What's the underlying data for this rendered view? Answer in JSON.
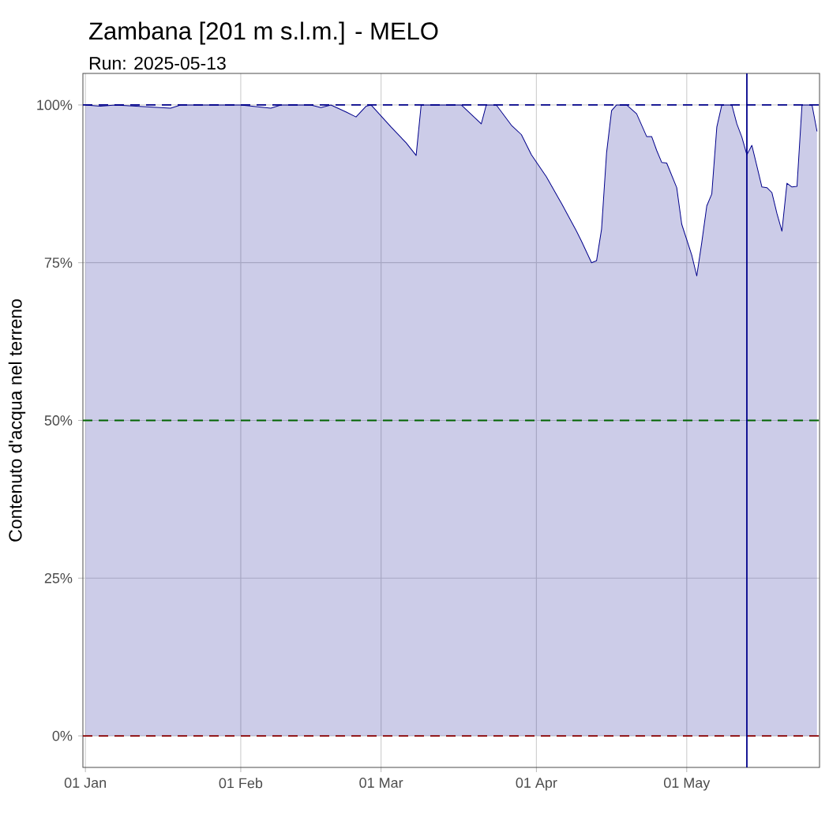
{
  "chart_data": {
    "type": "area",
    "title": "Zambana [201 m s.l.m.] - MELO",
    "subtitle": "Run: 2025-05-13",
    "ylabel": "Contenuto d'acqua nel terreno",
    "x": [
      "2025-01-01",
      "2025-01-04",
      "2025-01-07",
      "2025-01-18",
      "2025-01-20",
      "2025-02-01",
      "2025-02-07",
      "2025-02-09",
      "2025-02-15",
      "2025-02-17",
      "2025-02-19",
      "2025-02-22",
      "2025-02-24",
      "2025-02-26",
      "2025-02-27",
      "2025-03-03",
      "2025-03-06",
      "2025-03-08",
      "2025-03-09",
      "2025-03-17",
      "2025-03-21",
      "2025-03-22",
      "2025-03-24",
      "2025-03-27",
      "2025-03-29",
      "2025-03-31",
      "2025-04-03",
      "2025-04-06",
      "2025-04-09",
      "2025-04-10",
      "2025-04-12",
      "2025-04-13",
      "2025-04-14",
      "2025-04-15",
      "2025-04-16",
      "2025-04-17",
      "2025-04-19",
      "2025-04-21",
      "2025-04-23",
      "2025-04-24",
      "2025-04-25",
      "2025-04-26",
      "2025-04-27",
      "2025-04-29",
      "2025-04-30",
      "2025-05-02",
      "2025-05-03",
      "2025-05-04",
      "2025-05-05",
      "2025-05-06",
      "2025-05-07",
      "2025-05-08",
      "2025-05-10",
      "2025-05-11",
      "2025-05-12",
      "2025-05-13",
      "2025-05-14",
      "2025-05-15",
      "2025-05-16",
      "2025-05-17",
      "2025-05-18",
      "2025-05-19",
      "2025-05-20",
      "2025-05-21",
      "2025-05-22",
      "2025-05-23",
      "2025-05-24",
      "2025-05-26",
      "2025-05-27"
    ],
    "values": [
      100,
      99.8,
      100,
      99.5,
      100,
      100,
      99.5,
      100,
      100,
      99.6,
      100,
      98.9,
      98.1,
      99.8,
      100,
      96.5,
      94,
      92,
      100,
      100,
      97,
      100,
      100,
      96.8,
      95.3,
      92.1,
      88.6,
      84.4,
      80,
      78.4,
      75,
      75.3,
      80.3,
      92.4,
      99.1,
      100,
      100,
      98.6,
      95,
      95,
      92.8,
      90.9,
      90.8,
      86.9,
      81.1,
      76.2,
      72.9,
      78.2,
      84,
      85.9,
      96.5,
      100,
      100,
      97,
      94.9,
      92.1,
      93.6,
      90.3,
      87,
      86.9,
      86.1,
      82.8,
      80,
      87.6,
      87,
      87.1,
      100,
      100,
      95.8
    ],
    "color": "#00008b",
    "xlim": [
      "2024-12-31T12:00",
      "2025-05-27T12:00"
    ],
    "xticks": [
      {
        "value": "2025-01-01",
        "label": "01 Jan"
      },
      {
        "value": "2025-02-01",
        "label": "01 Feb"
      },
      {
        "value": "2025-03-01",
        "label": "01 Mar"
      },
      {
        "value": "2025-04-01",
        "label": "01 Apr"
      },
      {
        "value": "2025-05-01",
        "label": "01 May"
      }
    ],
    "ylim": [
      -5,
      105
    ],
    "yticks": [
      {
        "value": 0,
        "label": "0%"
      },
      {
        "value": 25,
        "label": "25%"
      },
      {
        "value": 50,
        "label": "50%"
      },
      {
        "value": 75,
        "label": "75%"
      },
      {
        "value": 100,
        "label": "100%"
      }
    ],
    "grid": true,
    "ref_lines": [
      {
        "axis": "y",
        "value": 100,
        "color": "#00008b",
        "line_style": "dashed"
      },
      {
        "axis": "y",
        "value": 50,
        "color": "#006400",
        "line_style": "dashed"
      },
      {
        "axis": "y",
        "value": 0,
        "color": "#8b0000",
        "line_style": "dashed"
      },
      {
        "axis": "x",
        "value": "2025-05-13",
        "color": "#00008b",
        "line_style": "solid"
      }
    ]
  }
}
